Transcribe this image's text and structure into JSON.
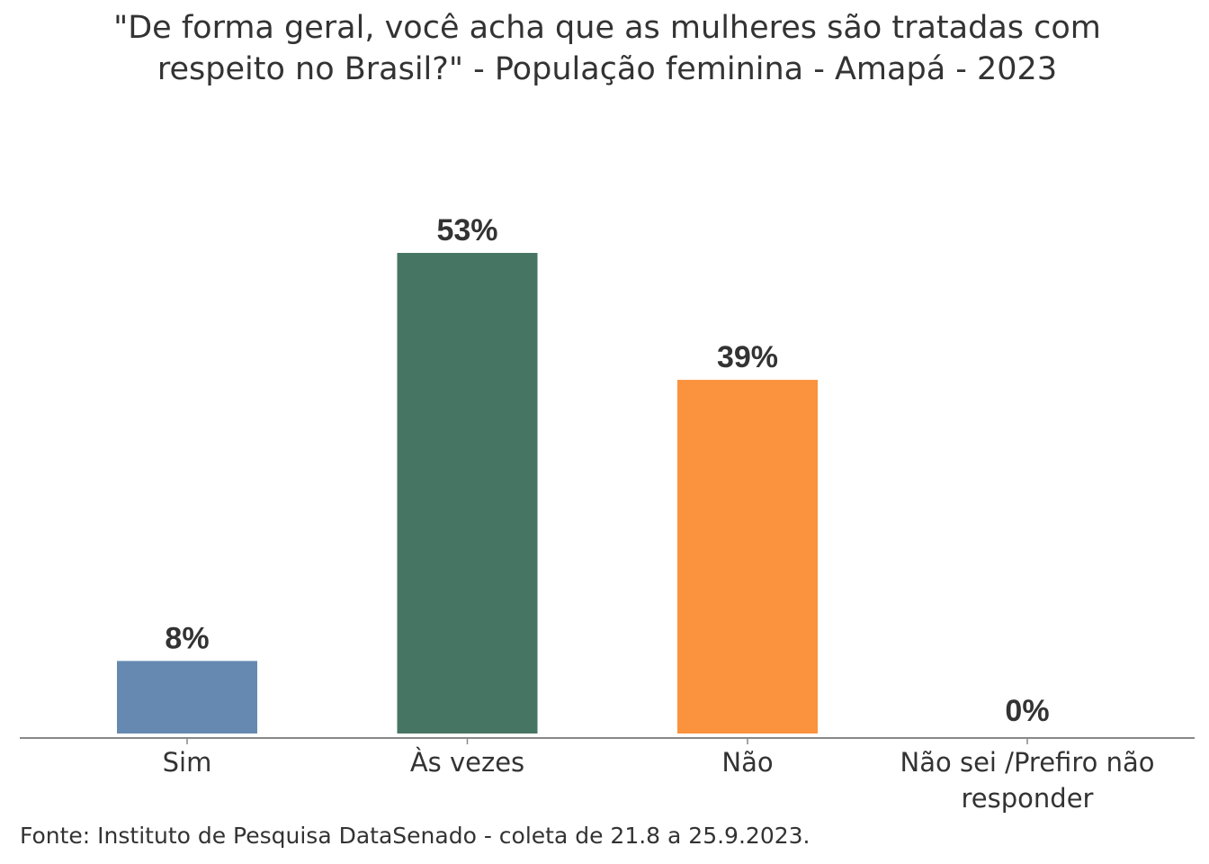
{
  "chart_data": {
    "type": "bar",
    "title_lines": [
      "\"De forma geral, você acha que as mulheres são tratadas com",
      "respeito no Brasil?\" - População feminina - Amapá - 2023"
    ],
    "categories": [
      [
        "Sim"
      ],
      [
        "Às vezes"
      ],
      [
        "Não"
      ],
      [
        "Não sei /Prefiro não",
        "responder"
      ]
    ],
    "values": [
      8,
      53,
      39,
      0
    ],
    "labels": [
      "8%",
      "53%",
      "39%",
      "0%"
    ],
    "colors": [
      "#6689B1",
      "#467563",
      "#FA923E",
      "#BBBBBB"
    ],
    "xlabel": "",
    "ylabel": "",
    "ylim": [
      0,
      53
    ],
    "grid": false,
    "source": "Fonte: Instituto de Pesquisa DataSenado - coleta de 21.8 a 25.9.2023."
  }
}
